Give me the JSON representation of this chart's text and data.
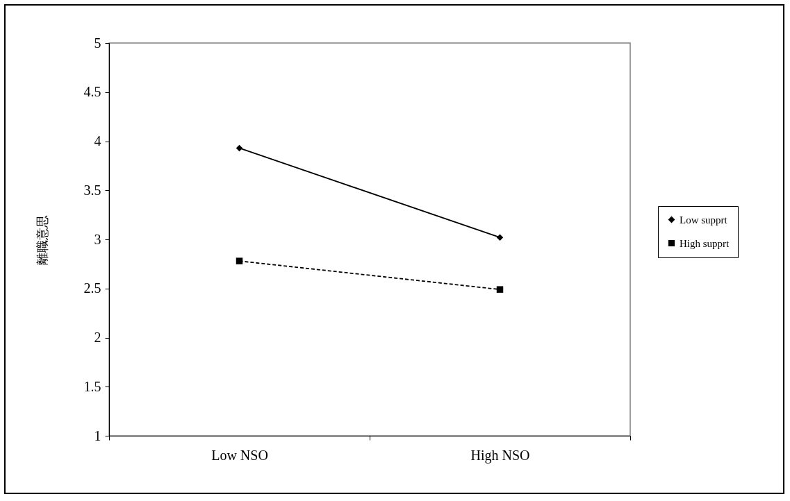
{
  "chart_data": {
    "type": "line",
    "ylabel": "離職意思",
    "categories": [
      "Low NSO",
      "High NSO"
    ],
    "series": [
      {
        "name": "Low supprt",
        "color": "#000000",
        "values": [
          3.93,
          3.02
        ],
        "marker": "diamond",
        "line_style": "solid"
      },
      {
        "name": "High supprt",
        "color": "#000000",
        "values": [
          2.78,
          2.49
        ],
        "marker": "square",
        "line_style": "dashed"
      }
    ],
    "ylim": [
      1,
      5
    ],
    "yticks": [
      1,
      1.5,
      2,
      2.5,
      3,
      3.5,
      4,
      4.5,
      5
    ],
    "grid": false,
    "legend": "right"
  }
}
